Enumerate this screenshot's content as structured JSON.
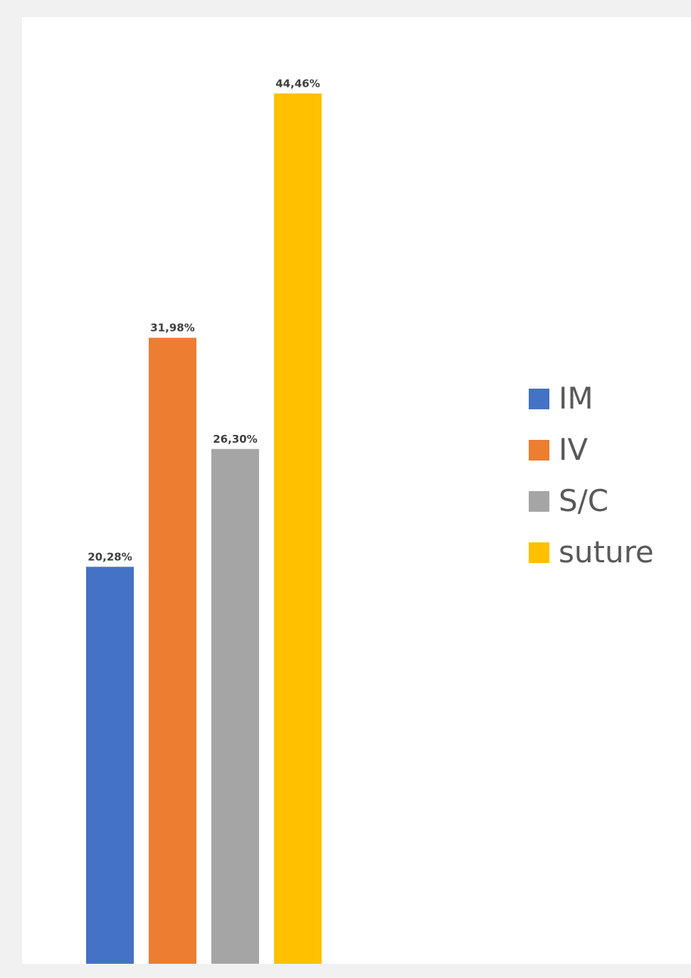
{
  "chart_data": {
    "type": "bar",
    "categories": [
      "IM",
      "IV",
      "S/C",
      "suture"
    ],
    "values": [
      20.28,
      31.98,
      26.3,
      44.46
    ],
    "data_labels": [
      "20,28%",
      "31,98%",
      "26,30%",
      "44,46%"
    ],
    "colors": [
      "#4472c4",
      "#ed7d31",
      "#a5a5a5",
      "#ffc000"
    ],
    "title": "",
    "xlabel": "",
    "ylabel": "",
    "ylim": [
      0,
      48
    ],
    "grid": false,
    "legend_position": "right",
    "legend": [
      {
        "label": "IM",
        "color": "#4472c4"
      },
      {
        "label": "IV",
        "color": "#ed7d31"
      },
      {
        "label": "S/C",
        "color": "#a5a5a5"
      },
      {
        "label": "suture",
        "color": "#ffc000"
      }
    ]
  }
}
